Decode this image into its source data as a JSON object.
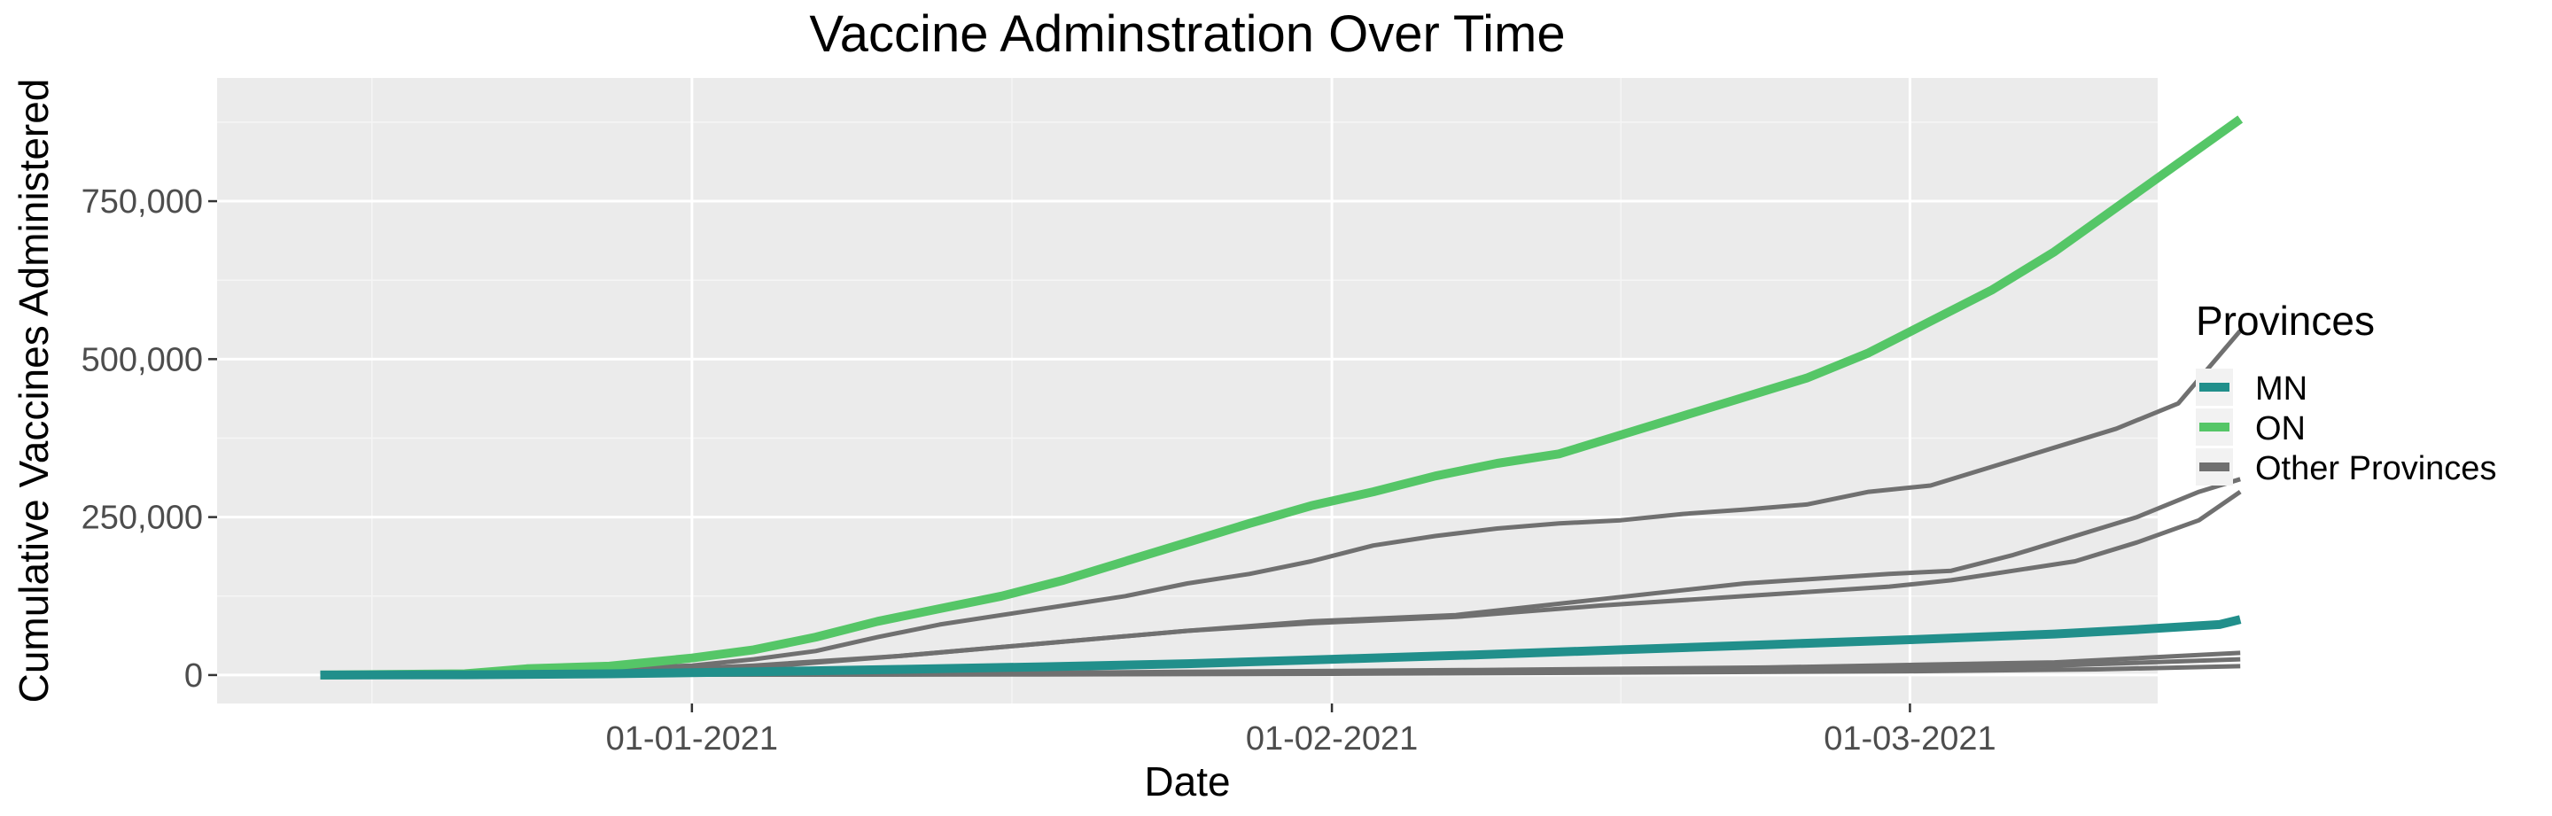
{
  "chart_data": {
    "type": "line",
    "title": "Vaccine Adminstration Over Time",
    "xlabel": "Date",
    "ylabel": "Cumulative Vaccines Administered",
    "x_tick_labels": [
      "01-01-2021",
      "01-02-2021",
      "01-03-2021"
    ],
    "y_tick_labels": [
      "0",
      "250,000",
      "500,000",
      "750,000"
    ],
    "y_ticks": [
      0,
      250000,
      500000,
      750000
    ],
    "ylim": [
      -45000,
      945000
    ],
    "xlim": [
      "2020-12-09",
      "2021-03-13"
    ],
    "x_ticks": [
      "2021-01-01",
      "2021-02-01",
      "2021-03-01"
    ],
    "grid": true,
    "legend_position": "right",
    "legend": {
      "title": "Provinces",
      "entries": [
        {
          "label": "MN",
          "color": "#218f8b"
        },
        {
          "label": "ON",
          "color": "#55c667"
        },
        {
          "label": "Other Provinces",
          "color": "#707070"
        }
      ]
    },
    "colors": {
      "panel_background": "#ebebeb",
      "grid_major": "#ffffff",
      "grid_minor": "#f5f5f5"
    },
    "series": [
      {
        "name": "ON",
        "group": "ON",
        "points": [
          [
            "2020-12-14",
            0
          ],
          [
            "2020-12-21",
            2000
          ],
          [
            "2020-12-24",
            10000
          ],
          [
            "2020-12-28",
            14000
          ],
          [
            "2021-01-01",
            27000
          ],
          [
            "2021-01-04",
            40000
          ],
          [
            "2021-01-07",
            60000
          ],
          [
            "2021-01-10",
            85000
          ],
          [
            "2021-01-13",
            105000
          ],
          [
            "2021-01-16",
            125000
          ],
          [
            "2021-01-19",
            150000
          ],
          [
            "2021-01-22",
            180000
          ],
          [
            "2021-01-25",
            210000
          ],
          [
            "2021-01-28",
            240000
          ],
          [
            "2021-01-31",
            268000
          ],
          [
            "2021-02-03",
            290000
          ],
          [
            "2021-02-06",
            315000
          ],
          [
            "2021-02-09",
            335000
          ],
          [
            "2021-02-12",
            350000
          ],
          [
            "2021-02-15",
            380000
          ],
          [
            "2021-02-18",
            410000
          ],
          [
            "2021-02-21",
            440000
          ],
          [
            "2021-02-24",
            470000
          ],
          [
            "2021-02-27",
            510000
          ],
          [
            "2021-03-02",
            560000
          ],
          [
            "2021-03-05",
            610000
          ],
          [
            "2021-03-08",
            670000
          ],
          [
            "2021-03-11",
            740000
          ],
          [
            "2021-03-14",
            810000
          ],
          [
            "2021-03-17",
            880000
          ]
        ]
      },
      {
        "name": "MN",
        "group": "MN",
        "points": [
          [
            "2020-12-14",
            0
          ],
          [
            "2020-12-21",
            500
          ],
          [
            "2020-12-28",
            2000
          ],
          [
            "2021-01-04",
            5000
          ],
          [
            "2021-01-11",
            9000
          ],
          [
            "2021-01-18",
            13000
          ],
          [
            "2021-01-25",
            18000
          ],
          [
            "2021-02-01",
            25000
          ],
          [
            "2021-02-08",
            32000
          ],
          [
            "2021-02-15",
            40000
          ],
          [
            "2021-02-22",
            48000
          ],
          [
            "2021-03-01",
            56000
          ],
          [
            "2021-03-08",
            65000
          ],
          [
            "2021-03-12",
            72000
          ],
          [
            "2021-03-16",
            80000
          ],
          [
            "2021-03-17",
            88000
          ]
        ]
      },
      {
        "group": "Other Provinces",
        "points": [
          [
            "2020-12-14",
            0
          ],
          [
            "2020-12-24",
            5000
          ],
          [
            "2021-01-01",
            15000
          ],
          [
            "2021-01-04",
            25000
          ],
          [
            "2021-01-07",
            38000
          ],
          [
            "2021-01-10",
            60000
          ],
          [
            "2021-01-13",
            80000
          ],
          [
            "2021-01-16",
            95000
          ],
          [
            "2021-01-19",
            110000
          ],
          [
            "2021-01-22",
            125000
          ],
          [
            "2021-01-25",
            145000
          ],
          [
            "2021-01-28",
            160000
          ],
          [
            "2021-01-31",
            180000
          ],
          [
            "2021-02-03",
            205000
          ],
          [
            "2021-02-06",
            220000
          ],
          [
            "2021-02-09",
            232000
          ],
          [
            "2021-02-12",
            240000
          ],
          [
            "2021-02-15",
            245000
          ],
          [
            "2021-02-18",
            255000
          ],
          [
            "2021-02-21",
            262000
          ],
          [
            "2021-02-24",
            270000
          ],
          [
            "2021-02-27",
            290000
          ],
          [
            "2021-03-02",
            300000
          ],
          [
            "2021-03-05",
            330000
          ],
          [
            "2021-03-08",
            360000
          ],
          [
            "2021-03-11",
            390000
          ],
          [
            "2021-03-14",
            430000
          ],
          [
            "2021-03-17",
            545000
          ]
        ]
      },
      {
        "group": "Other Provinces",
        "points": [
          [
            "2020-12-14",
            0
          ],
          [
            "2020-12-28",
            5000
          ],
          [
            "2021-01-04",
            15000
          ],
          [
            "2021-01-11",
            30000
          ],
          [
            "2021-01-18",
            50000
          ],
          [
            "2021-01-25",
            70000
          ],
          [
            "2021-01-31",
            85000
          ],
          [
            "2021-02-07",
            95000
          ],
          [
            "2021-02-14",
            120000
          ],
          [
            "2021-02-21",
            145000
          ],
          [
            "2021-02-28",
            160000
          ],
          [
            "2021-03-03",
            165000
          ],
          [
            "2021-03-06",
            190000
          ],
          [
            "2021-03-09",
            220000
          ],
          [
            "2021-03-12",
            250000
          ],
          [
            "2021-03-15",
            290000
          ],
          [
            "2021-03-17",
            310000
          ]
        ]
      },
      {
        "group": "Other Provinces",
        "points": [
          [
            "2020-12-14",
            0
          ],
          [
            "2020-12-28",
            4000
          ],
          [
            "2021-01-04",
            12000
          ],
          [
            "2021-01-11",
            30000
          ],
          [
            "2021-01-18",
            50000
          ],
          [
            "2021-01-25",
            70000
          ],
          [
            "2021-01-31",
            82000
          ],
          [
            "2021-02-07",
            92000
          ],
          [
            "2021-02-14",
            110000
          ],
          [
            "2021-02-21",
            125000
          ],
          [
            "2021-02-28",
            140000
          ],
          [
            "2021-03-03",
            150000
          ],
          [
            "2021-03-06",
            165000
          ],
          [
            "2021-03-09",
            180000
          ],
          [
            "2021-03-12",
            210000
          ],
          [
            "2021-03-15",
            245000
          ],
          [
            "2021-03-17",
            290000
          ]
        ]
      },
      {
        "group": "Other Provinces",
        "points": [
          [
            "2020-12-14",
            0
          ],
          [
            "2021-01-11",
            2000
          ],
          [
            "2021-01-25",
            5000
          ],
          [
            "2021-02-08",
            8000
          ],
          [
            "2021-02-22",
            12000
          ],
          [
            "2021-03-01",
            16000
          ],
          [
            "2021-03-08",
            20000
          ],
          [
            "2021-03-17",
            35000
          ]
        ]
      },
      {
        "group": "Other Provinces",
        "points": [
          [
            "2020-12-14",
            0
          ],
          [
            "2021-01-11",
            1000
          ],
          [
            "2021-01-25",
            3000
          ],
          [
            "2021-02-08",
            6000
          ],
          [
            "2021-02-22",
            9000
          ],
          [
            "2021-03-01",
            12000
          ],
          [
            "2021-03-08",
            15000
          ],
          [
            "2021-03-17",
            25000
          ]
        ]
      },
      {
        "group": "Other Provinces",
        "points": [
          [
            "2020-12-14",
            0
          ],
          [
            "2021-01-18",
            1000
          ],
          [
            "2021-02-01",
            2000
          ],
          [
            "2021-02-15",
            4000
          ],
          [
            "2021-03-01",
            6000
          ],
          [
            "2021-03-10",
            9000
          ],
          [
            "2021-03-17",
            14000
          ]
        ]
      }
    ]
  }
}
